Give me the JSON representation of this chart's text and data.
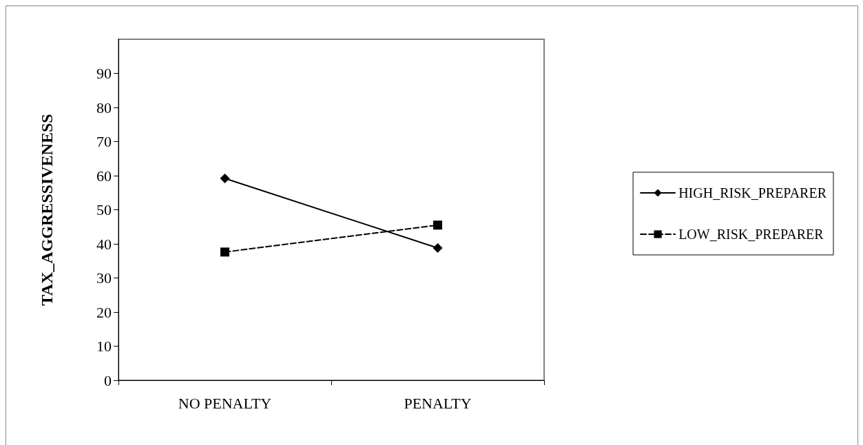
{
  "chart_data": {
    "type": "line",
    "ylabel": "TAX_AGGRESSIVENESS",
    "categories": [
      "NO PENALTY",
      "PENALTY"
    ],
    "series": [
      {
        "name": "HIGH_RISK_PREPARER",
        "color": "#000000",
        "marker": "diamond",
        "line_style": "solid",
        "values": [
          59.2,
          38.8
        ]
      },
      {
        "name": "LOW_RISK_PREPARER",
        "color": "#000000",
        "marker": "square",
        "line_style": "dashed",
        "values": [
          37.6,
          45.5
        ]
      }
    ],
    "ylim": [
      0,
      100
    ],
    "yticks": [
      0,
      10,
      20,
      30,
      40,
      50,
      60,
      70,
      80,
      90
    ],
    "grid": false,
    "legend": "right"
  }
}
